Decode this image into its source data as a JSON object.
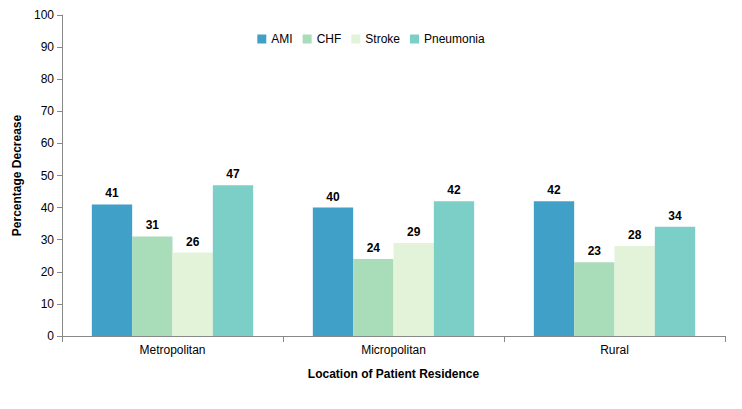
{
  "chart_data": {
    "type": "bar",
    "categories": [
      "Metropolitan",
      "Micropolitan",
      "Rural"
    ],
    "series": [
      {
        "name": "AMI",
        "color": "#41a0c8",
        "values": [
          41,
          40,
          42
        ]
      },
      {
        "name": "CHF",
        "color": "#a9dcb9",
        "values": [
          31,
          24,
          23
        ]
      },
      {
        "name": "Stroke",
        "color": "#e3f3da",
        "values": [
          26,
          29,
          28
        ]
      },
      {
        "name": "Pneumonia",
        "color": "#7ccfc6",
        "values": [
          47,
          42,
          34
        ]
      }
    ],
    "x_label": "Location of Patient Residence",
    "y_label": "Percentage Decrease",
    "ylim": [
      0,
      100
    ],
    "yticks": [
      0,
      10,
      20,
      30,
      40,
      50,
      60,
      70,
      80,
      90,
      100
    ],
    "grid": false,
    "legend": "top",
    "data_labels": true
  }
}
